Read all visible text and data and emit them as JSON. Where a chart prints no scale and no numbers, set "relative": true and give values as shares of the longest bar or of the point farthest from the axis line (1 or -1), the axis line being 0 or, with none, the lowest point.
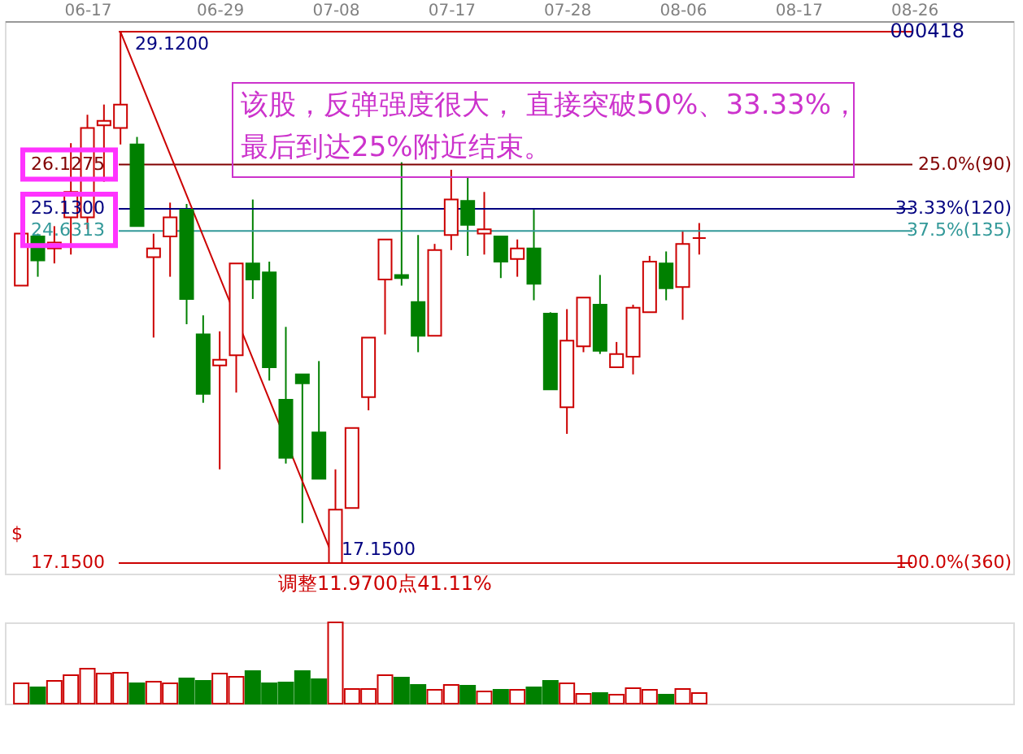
{
  "chart_data": [
    {
      "type": "candlestick",
      "categories": [
        null,
        null,
        null,
        null,
        "06-17",
        null,
        null,
        null,
        null,
        null,
        null,
        null,
        "06-29",
        null,
        null,
        null,
        null,
        null,
        null,
        "07-08",
        null,
        null,
        null,
        null,
        null,
        null,
        "07-17",
        null,
        null,
        null,
        null,
        null,
        null,
        "07-28",
        null,
        null,
        null,
        null,
        null,
        null,
        "08-06",
        null,
        null,
        null,
        null,
        null,
        null,
        "08-17",
        null,
        null,
        null,
        null,
        null,
        null,
        "08-26",
        null,
        null,
        null,
        null,
        null
      ],
      "ohlc": [
        [
          23.4,
          24.57,
          23.4,
          24.57
        ],
        [
          24.51,
          24.57,
          23.6,
          23.97
        ],
        [
          24.24,
          24.74,
          23.9,
          24.37
        ],
        [
          24.94,
          26.61,
          24.1,
          25.51
        ],
        [
          24.94,
          27.25,
          24.67,
          26.95
        ],
        [
          27.01,
          27.48,
          25.74,
          27.11
        ],
        [
          26.95,
          29.12,
          26.58,
          27.48
        ],
        [
          26.58,
          26.75,
          24.74,
          24.74
        ],
        [
          24.04,
          24.57,
          22.23,
          24.24
        ],
        [
          24.51,
          25.27,
          23.6,
          24.94
        ],
        [
          25.11,
          25.24,
          22.53,
          23.1
        ],
        [
          22.3,
          22.73,
          20.76,
          20.96
        ],
        [
          21.6,
          22.37,
          19.26,
          21.73
        ],
        [
          21.83,
          23.9,
          20.99,
          23.9
        ],
        [
          23.9,
          25.34,
          23.1,
          23.54
        ],
        [
          23.7,
          23.94,
          21.26,
          21.56
        ],
        [
          20.83,
          22.47,
          19.39,
          19.52
        ],
        [
          21.4,
          21.4,
          18.05,
          21.2
        ],
        [
          20.09,
          21.7,
          19.05,
          19.05
        ],
        [
          17.15,
          19.26,
          17.15,
          18.35
        ],
        [
          18.39,
          20.19,
          18.39,
          20.19
        ],
        [
          20.89,
          22.23,
          20.59,
          22.23
        ],
        [
          23.54,
          24.44,
          22.3,
          24.44
        ],
        [
          23.64,
          26.18,
          23.4,
          23.57
        ],
        [
          23.03,
          24.54,
          21.9,
          22.27
        ],
        [
          22.27,
          24.34,
          22.27,
          24.2
        ],
        [
          24.54,
          26.01,
          24.2,
          25.34
        ],
        [
          25.31,
          25.84,
          24.07,
          24.77
        ],
        [
          24.57,
          25.51,
          24.1,
          24.67
        ],
        [
          24.51,
          24.51,
          23.57,
          23.94
        ],
        [
          24.0,
          24.44,
          23.6,
          24.24
        ],
        [
          24.24,
          25.11,
          23.07,
          23.44
        ],
        [
          22.77,
          22.8,
          21.06,
          21.06
        ],
        [
          20.66,
          22.87,
          20.06,
          22.16
        ],
        [
          22.03,
          23.13,
          21.9,
          23.13
        ],
        [
          22.97,
          23.64,
          21.86,
          21.93
        ],
        [
          21.56,
          22.13,
          21.56,
          21.86
        ],
        [
          21.8,
          22.97,
          21.4,
          22.9
        ],
        [
          22.8,
          24.07,
          22.8,
          23.94
        ],
        [
          23.9,
          24.17,
          23.07,
          23.34
        ],
        [
          23.37,
          24.64,
          22.63,
          24.34
        ],
        [
          24.47,
          24.81,
          24.1,
          24.47
        ],
        null,
        null,
        null,
        null,
        null,
        null,
        null,
        null,
        null,
        null,
        null,
        null,
        null,
        null,
        null,
        null,
        null,
        null
      ],
      "colors": [
        "#cc0000",
        "#008000",
        "#cc0000",
        "#cc0000",
        "#cc0000",
        "#cc0000",
        "#cc0000",
        "#008000",
        "#cc0000",
        "#cc0000",
        "#008000",
        "#008000",
        "#cc0000",
        "#cc0000",
        "#008000",
        "#008000",
        "#008000",
        "#008000",
        "#008000",
        "#cc0000",
        "#cc0000",
        "#cc0000",
        "#cc0000",
        "#008000",
        "#008000",
        "#cc0000",
        "#cc0000",
        "#008000",
        "#cc0000",
        "#008000",
        "#cc0000",
        "#008000",
        "#008000",
        "#cc0000",
        "#cc0000",
        "#008000",
        "#cc0000",
        "#cc0000",
        "#cc0000",
        "#008000",
        "#cc0000",
        "#cc0000",
        null,
        null,
        null,
        null,
        null,
        null,
        null,
        null,
        null,
        null,
        null,
        null,
        null,
        null,
        null,
        null,
        null,
        null
      ],
      "series": [
        {
          "type": "line",
          "values": [
            null,
            null,
            null,
            null,
            null,
            null,
            29.12,
            null,
            null,
            null,
            null,
            null,
            null,
            null,
            null,
            null,
            null,
            null,
            null,
            17.15,
            null,
            null,
            null,
            null,
            null,
            null,
            null,
            null,
            null,
            null,
            null,
            null,
            null,
            null,
            null,
            null,
            null,
            null,
            null,
            null,
            null,
            null,
            null,
            null,
            null,
            null,
            null,
            null,
            null,
            null,
            null,
            null,
            null,
            null,
            null,
            null,
            null,
            null,
            null,
            null
          ],
          "color": "#cc0000"
        }
      ],
      "ref_lines": [
        {
          "axis": "y",
          "value": 29.12,
          "label": null,
          "color": "#cc0000"
        },
        {
          "axis": "y",
          "value": 26.1275,
          "label": null,
          "color": "#800000"
        },
        {
          "axis": "y",
          "value": 25.13,
          "label": null,
          "color": "#000080"
        },
        {
          "axis": "y",
          "value": 24.6313,
          "label": null,
          "color": "#339999"
        },
        {
          "axis": "y",
          "value": 17.15,
          "label": null,
          "color": "#cc0000"
        }
      ],
      "annotations": [
        "000418",
        "该股，反弹强度很大， 直接突破50%、33.33%，",
        "最后到达25%附近结束。",
        {
          "text": "29.1200",
          "y": 29.12
        },
        {
          "text": "26.1275",
          "y": 26.1275
        },
        {
          "text": "25.1300",
          "y": 25.13
        },
        {
          "text": "24.6313",
          "y": 24.6313
        },
        "17.1500",
        "17.1500",
        "$",
        "调整11.9700点41.11%",
        "25.0%(90)",
        "33.33%(120)",
        "37.5%(135)",
        "100.0%(360)"
      ]
    },
    {
      "type": "bar",
      "relative": true,
      "categories": [
        null,
        null,
        null,
        null,
        null,
        null,
        null,
        null,
        null,
        null,
        null,
        null,
        null,
        null,
        null,
        null,
        null,
        null,
        null,
        null,
        null,
        null,
        null,
        null,
        null,
        null,
        null,
        null,
        null,
        null,
        null,
        null,
        null,
        null,
        null,
        null,
        null,
        null,
        null,
        null,
        null,
        null,
        null,
        null,
        null,
        null,
        null,
        null,
        null,
        null,
        null,
        null,
        null,
        null,
        null,
        null,
        null,
        null,
        null,
        null
      ],
      "values": [
        0.25,
        0.2,
        0.28,
        0.35,
        0.43,
        0.37,
        0.38,
        0.25,
        0.27,
        0.25,
        0.31,
        0.28,
        0.37,
        0.33,
        0.4,
        0.25,
        0.26,
        0.4,
        0.3,
        1,
        0.18,
        0.18,
        0.35,
        0.32,
        0.23,
        0.17,
        0.23,
        0.22,
        0.15,
        0.17,
        0.17,
        0.2,
        0.28,
        0.25,
        0.12,
        0.13,
        0.11,
        0.19,
        0.17,
        0.11,
        0.18,
        0.13,
        null,
        null,
        null,
        null,
        null,
        null,
        null,
        null,
        null,
        null,
        null,
        null,
        null,
        null,
        null,
        null,
        null,
        null
      ],
      "colors": [
        "#cc0000",
        "#008000",
        "#cc0000",
        "#cc0000",
        "#cc0000",
        "#cc0000",
        "#cc0000",
        "#008000",
        "#cc0000",
        "#cc0000",
        "#008000",
        "#008000",
        "#cc0000",
        "#cc0000",
        "#008000",
        "#008000",
        "#008000",
        "#008000",
        "#008000",
        "#cc0000",
        "#cc0000",
        "#cc0000",
        "#cc0000",
        "#008000",
        "#008000",
        "#cc0000",
        "#cc0000",
        "#008000",
        "#cc0000",
        "#008000",
        "#cc0000",
        "#008000",
        "#008000",
        "#cc0000",
        "#cc0000",
        "#008000",
        "#cc0000",
        "#cc0000",
        "#cc0000",
        "#008000",
        "#cc0000",
        "#cc0000",
        null,
        null,
        null,
        null,
        null,
        null,
        null,
        null,
        null,
        null,
        null,
        null,
        null,
        null,
        null,
        null,
        null,
        null
      ]
    }
  ]
}
